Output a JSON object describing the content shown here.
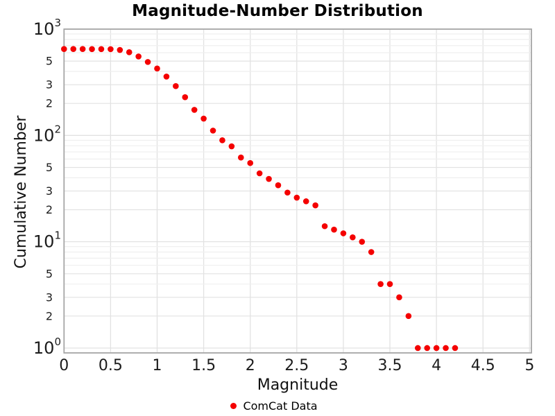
{
  "figure": {
    "title": "Magnitude-Number Distribution"
  },
  "chart_data": {
    "type": "scatter",
    "title": "Magnitude-Number Distribution",
    "xlabel": "Magnitude",
    "ylabel": "Cumulative Number",
    "x_scale": "linear",
    "y_scale": "log",
    "xlim": [
      0,
      5.02
    ],
    "ylim": [
      0.9,
      1000
    ],
    "grid": true,
    "x_tick_labels": [
      "0",
      "0.5",
      "1",
      "1.5",
      "2",
      "2.5",
      "3",
      "3.5",
      "4",
      "4.5",
      "5"
    ],
    "x_tick_values": [
      0,
      0.5,
      1,
      1.5,
      2,
      2.5,
      3,
      3.5,
      4,
      4.5,
      5
    ],
    "y_major_exponents": [
      0,
      1,
      2,
      3
    ],
    "y_minor_mantissas": [
      2,
      3,
      4,
      5,
      6,
      7,
      8,
      9
    ],
    "y_labeled_mantissas": [
      2,
      3,
      5
    ],
    "legend": {
      "position": "bottom-center",
      "entries": [
        {
          "label": "ComCat Data",
          "marker": "circle",
          "color": "#f40000"
        }
      ]
    },
    "series": [
      {
        "name": "ComCat Data",
        "marker": "circle",
        "color": "#f40000",
        "marker_size": 8.6,
        "x": [
          0.0,
          0.1,
          0.2,
          0.3,
          0.4,
          0.5,
          0.6,
          0.7,
          0.8,
          0.9,
          1.0,
          1.1,
          1.2,
          1.3,
          1.4,
          1.5,
          1.6,
          1.7,
          1.8,
          1.9,
          2.0,
          2.1,
          2.2,
          2.3,
          2.4,
          2.5,
          2.6,
          2.7,
          2.8,
          2.9,
          3.0,
          3.1,
          3.2,
          3.3,
          3.4,
          3.5,
          3.6,
          3.7,
          3.8,
          3.9,
          4.0,
          4.1,
          4.2
        ],
        "y": [
          650,
          650,
          650,
          649,
          649,
          648,
          637,
          606,
          553,
          491,
          426,
          358,
          291,
          229,
          174,
          144,
          111,
          90,
          79,
          62,
          55,
          44,
          39,
          34,
          29,
          26,
          24,
          22,
          14,
          13,
          12,
          11,
          10,
          8,
          4,
          4,
          3,
          2,
          1,
          1,
          1,
          1,
          1
        ]
      }
    ]
  },
  "colors": {
    "marker": "#f40000",
    "grid_minor": "#efefef",
    "grid_labeled": "#e2e2e2",
    "axis_border": "#a6a6a6",
    "tick_text": "#1c1c1c",
    "background": "#ffffff"
  }
}
